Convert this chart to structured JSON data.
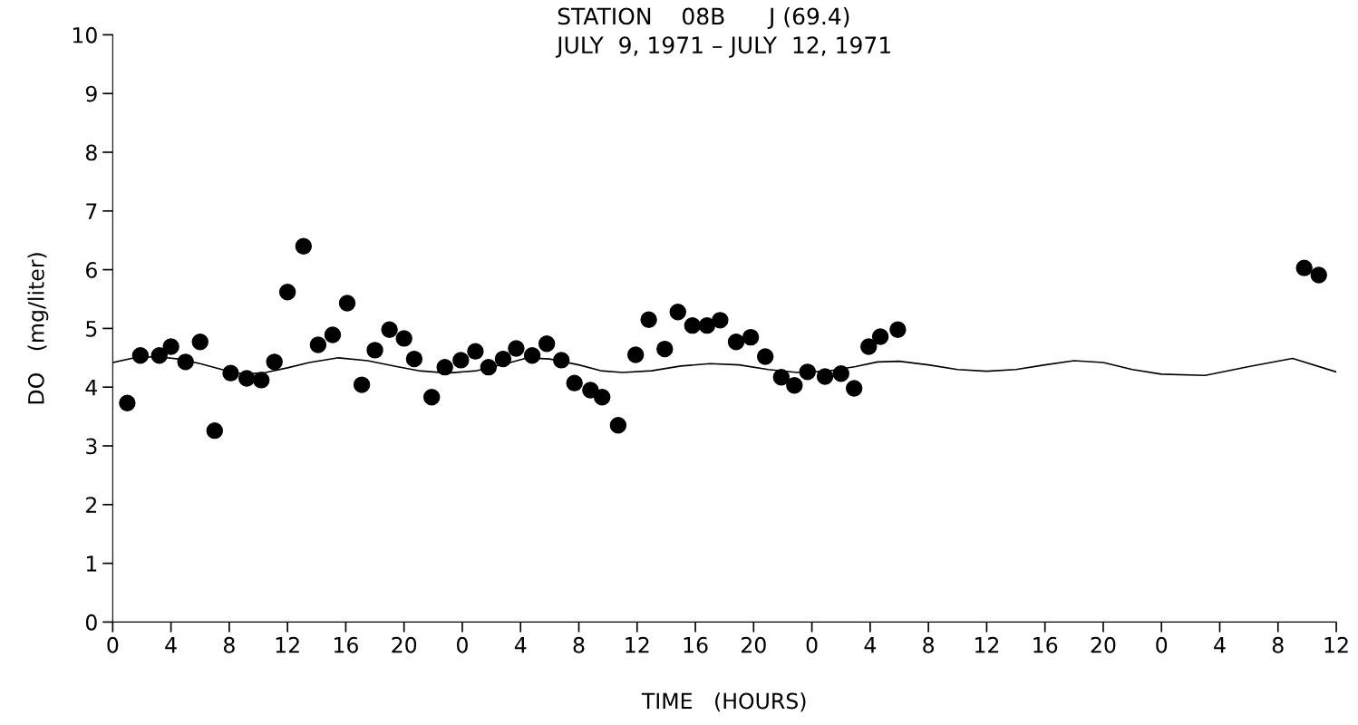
{
  "chart_data": {
    "type": "scatter",
    "title": "STATION    08B      J (69.4)\nJULY  9, 1971 – JULY  12, 1971",
    "xlabel": "TIME   (HOURS)",
    "ylabel": "DO   (mg/liter)",
    "xlim": [
      "1971-07-09T00:00",
      "1971-07-12T12:00"
    ],
    "ylim": [
      0,
      10
    ],
    "xticks": [
      {
        "value": "1971-07-09T00:00",
        "label": "0"
      },
      {
        "value": "1971-07-09T04:00",
        "label": "4"
      },
      {
        "value": "1971-07-09T08:00",
        "label": "8"
      },
      {
        "value": "1971-07-09T12:00",
        "label": "12"
      },
      {
        "value": "1971-07-09T16:00",
        "label": "16"
      },
      {
        "value": "1971-07-09T20:00",
        "label": "20"
      },
      {
        "value": "1971-07-10T00:00",
        "label": "0"
      },
      {
        "value": "1971-07-10T04:00",
        "label": "4"
      },
      {
        "value": "1971-07-10T08:00",
        "label": "8"
      },
      {
        "value": "1971-07-10T12:00",
        "label": "12"
      },
      {
        "value": "1971-07-10T16:00",
        "label": "16"
      },
      {
        "value": "1971-07-10T20:00",
        "label": "20"
      },
      {
        "value": "1971-07-11T00:00",
        "label": "0"
      },
      {
        "value": "1971-07-11T04:00",
        "label": "4"
      },
      {
        "value": "1971-07-11T08:00",
        "label": "8"
      },
      {
        "value": "1971-07-11T12:00",
        "label": "12"
      },
      {
        "value": "1971-07-11T16:00",
        "label": "16"
      },
      {
        "value": "1971-07-11T20:00",
        "label": "20"
      },
      {
        "value": "1971-07-12T00:00",
        "label": "0"
      },
      {
        "value": "1971-07-12T04:00",
        "label": "4"
      },
      {
        "value": "1971-07-12T08:00",
        "label": "8"
      },
      {
        "value": "1971-07-12T12:00",
        "label": "12"
      }
    ],
    "yticks": [
      0,
      1,
      2,
      3,
      4,
      5,
      6,
      7,
      8,
      9,
      10
    ],
    "grid": false,
    "series": [
      {
        "color": "#000000",
        "marker": "circle",
        "x": [
          "1971-07-09T01:00",
          "1971-07-09T01:54",
          "1971-07-09T03:12",
          "1971-07-09T04:00",
          "1971-07-09T05:00",
          "1971-07-09T06:00",
          "1971-07-09T07:00",
          "1971-07-09T08:06",
          "1971-07-09T09:12",
          "1971-07-09T10:12",
          "1971-07-09T11:06",
          "1971-07-09T12:00",
          "1971-07-09T13:06",
          "1971-07-09T14:06",
          "1971-07-09T15:06",
          "1971-07-09T16:06",
          "1971-07-09T17:06",
          "1971-07-09T18:00",
          "1971-07-09T19:00",
          "1971-07-09T20:00",
          "1971-07-09T20:42",
          "1971-07-09T21:54",
          "1971-07-09T22:48",
          "1971-07-09T23:54",
          "1971-07-10T00:54",
          "1971-07-10T01:48",
          "1971-07-10T02:48",
          "1971-07-10T03:42",
          "1971-07-10T04:48",
          "1971-07-10T05:48",
          "1971-07-10T06:48",
          "1971-07-10T07:42",
          "1971-07-10T08:48",
          "1971-07-10T09:36",
          "1971-07-10T10:42",
          "1971-07-10T11:54",
          "1971-07-10T12:48",
          "1971-07-10T13:54",
          "1971-07-10T14:48",
          "1971-07-10T15:48",
          "1971-07-10T16:48",
          "1971-07-10T17:42",
          "1971-07-10T18:48",
          "1971-07-10T19:48",
          "1971-07-10T20:48",
          "1971-07-10T21:54",
          "1971-07-10T22:48",
          "1971-07-10T23:42",
          "1971-07-11T00:54",
          "1971-07-11T02:00",
          "1971-07-11T02:54",
          "1971-07-11T03:54",
          "1971-07-11T04:42",
          "1971-07-11T05:54",
          "1971-07-12T09:48",
          "1971-07-12T10:48"
        ],
        "values": [
          3.73,
          4.54,
          4.54,
          4.69,
          4.43,
          4.77,
          3.26,
          4.24,
          4.15,
          4.12,
          4.43,
          5.62,
          6.4,
          4.72,
          4.89,
          5.43,
          4.04,
          4.63,
          4.98,
          4.83,
          4.48,
          3.83,
          4.34,
          4.46,
          4.61,
          4.34,
          4.48,
          4.66,
          4.54,
          4.74,
          4.46,
          4.07,
          3.95,
          3.83,
          3.35,
          4.55,
          5.15,
          4.65,
          5.28,
          5.05,
          5.05,
          5.14,
          4.77,
          4.85,
          4.52,
          4.17,
          4.03,
          4.26,
          4.18,
          4.23,
          3.98,
          4.69,
          4.86,
          4.98,
          6.03,
          5.91
        ]
      },
      {
        "type": "line",
        "color": "#000000",
        "marker": "none",
        "line_style": "solid",
        "x": [
          "1971-07-09T00:00",
          "1971-07-09T01:30",
          "1971-07-09T03:00",
          "1971-07-09T04:30",
          "1971-07-09T06:00",
          "1971-07-09T07:30",
          "1971-07-09T09:00",
          "1971-07-09T10:30",
          "1971-07-09T12:00",
          "1971-07-09T13:30",
          "1971-07-09T15:30",
          "1971-07-09T17:30",
          "1971-07-09T19:30",
          "1971-07-09T21:00",
          "1971-07-09T23:00",
          "1971-07-10T01:00",
          "1971-07-10T03:00",
          "1971-07-10T04:30",
          "1971-07-10T06:00",
          "1971-07-10T08:00",
          "1971-07-10T09:30",
          "1971-07-10T11:00",
          "1971-07-10T13:00",
          "1971-07-10T15:00",
          "1971-07-10T17:00",
          "1971-07-10T19:00",
          "1971-07-10T21:00",
          "1971-07-10T23:00",
          "1971-07-11T01:00",
          "1971-07-11T03:00",
          "1971-07-11T04:30",
          "1971-07-11T06:00",
          "1971-07-11T08:00",
          "1971-07-11T10:00",
          "1971-07-11T12:00",
          "1971-07-11T14:00",
          "1971-07-11T16:00",
          "1971-07-11T18:00",
          "1971-07-11T20:00",
          "1971-07-11T22:00",
          "1971-07-12T00:00",
          "1971-07-12T03:00",
          "1971-07-12T06:00",
          "1971-07-12T09:00",
          "1971-07-12T12:00"
        ],
        "values": [
          4.42,
          4.5,
          4.52,
          4.48,
          4.4,
          4.3,
          4.22,
          4.25,
          4.33,
          4.42,
          4.5,
          4.45,
          4.35,
          4.28,
          4.24,
          4.28,
          4.4,
          4.5,
          4.48,
          4.38,
          4.28,
          4.25,
          4.28,
          4.36,
          4.4,
          4.38,
          4.3,
          4.25,
          4.27,
          4.35,
          4.43,
          4.44,
          4.38,
          4.3,
          4.27,
          4.3,
          4.38,
          4.45,
          4.42,
          4.3,
          4.22,
          4.2,
          4.35,
          4.49,
          4.26
        ]
      }
    ]
  }
}
